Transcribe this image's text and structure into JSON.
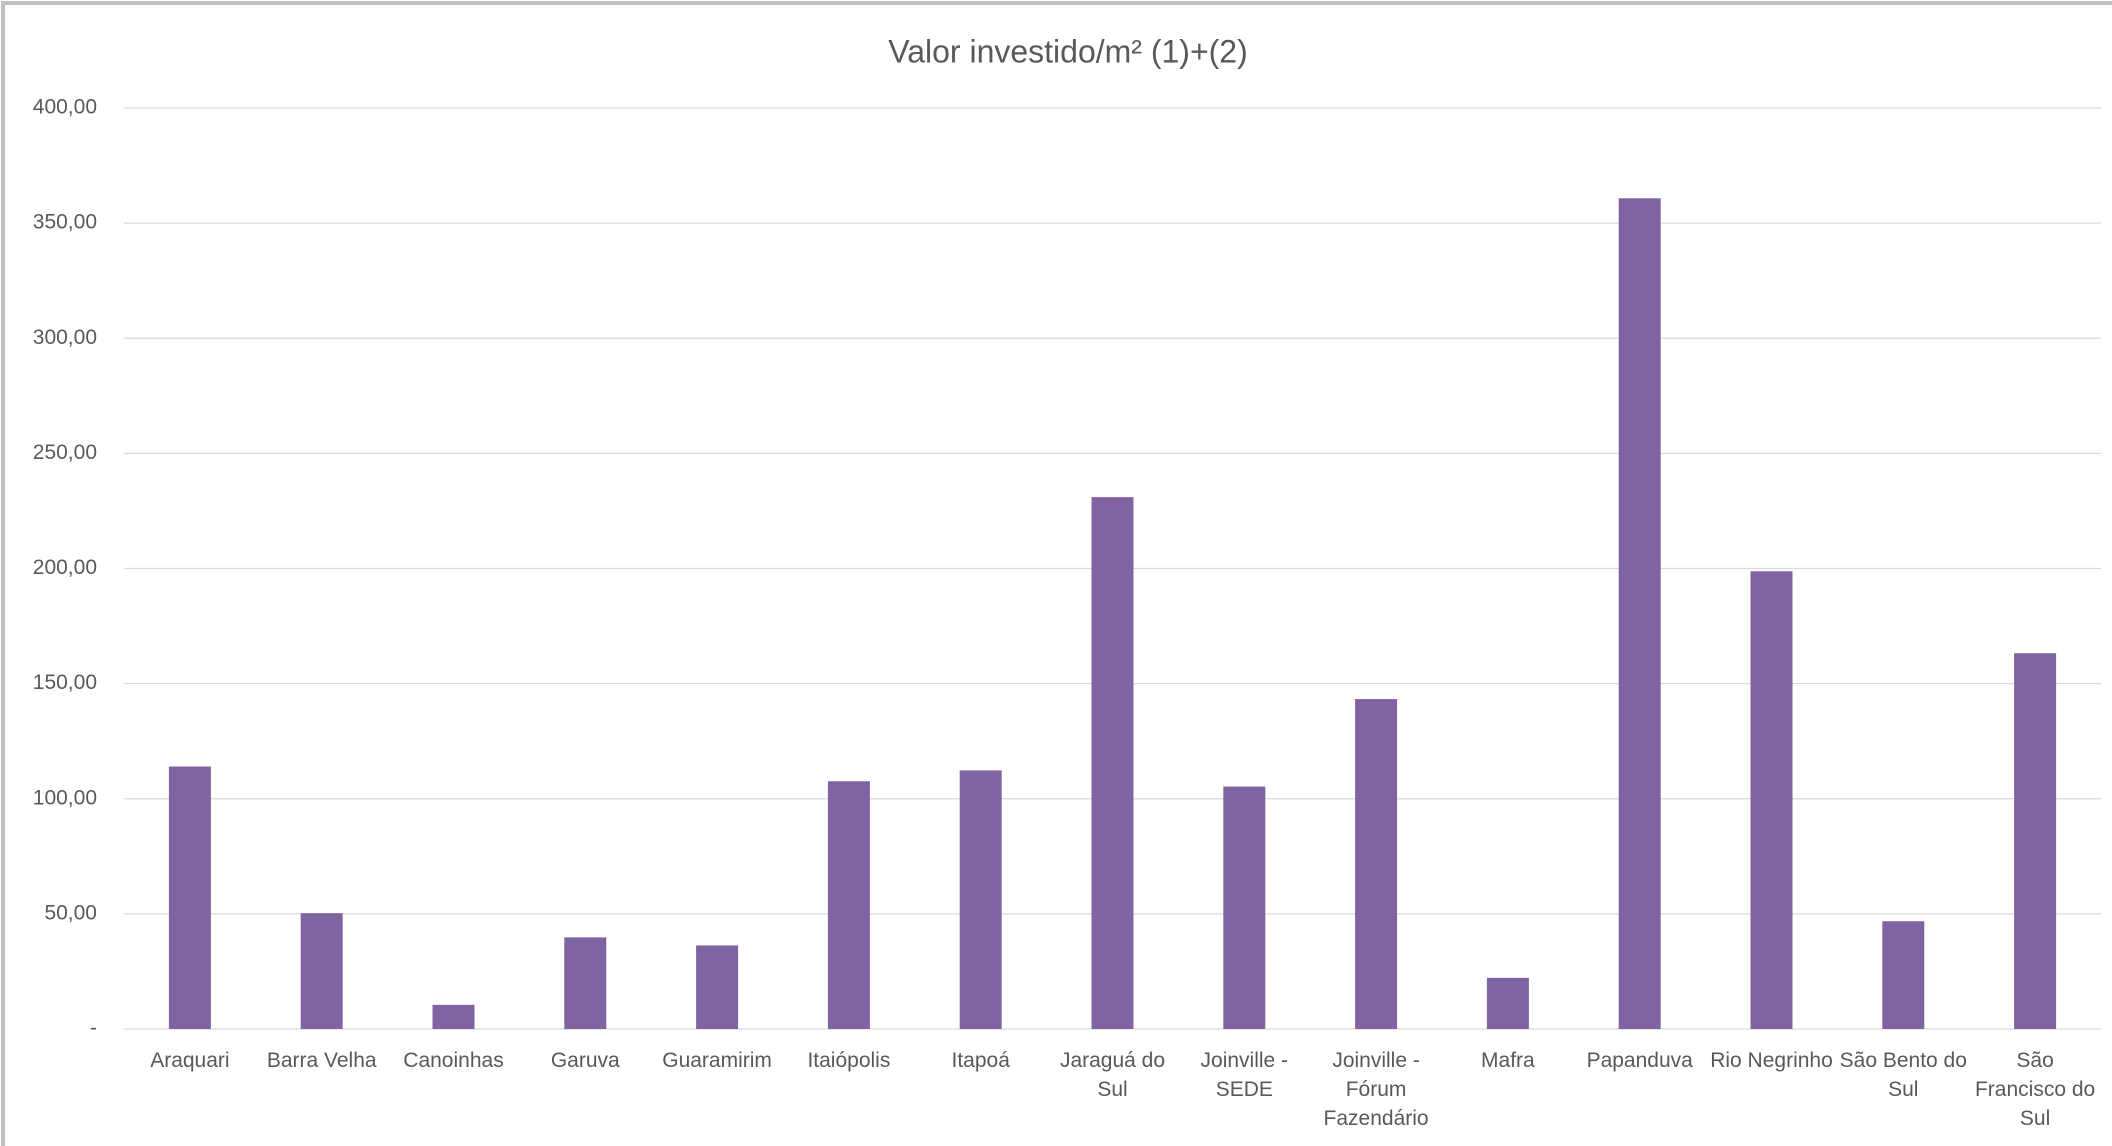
{
  "chart_data": {
    "type": "bar",
    "title": "Valor investido/m² (1)+(2)",
    "categories": [
      "Araquari",
      "Barra Velha",
      "Canoinhas",
      "Garuva",
      "Guaramirim",
      "Itaiópolis",
      "Itapoá",
      "Jaraguá do Sul",
      "Joinville - SEDE",
      "Joinville - Fórum Fazendário",
      "Mafra",
      "Papanduva",
      "Rio Negrinho",
      "São Bento do Sul",
      "São Francisco do Sul"
    ],
    "values": [
      114,
      50.3,
      10.5,
      39.8,
      36.3,
      107.6,
      112.3,
      231,
      105.3,
      143.3,
      22.2,
      360.8,
      198.8,
      46.8,
      163.2
    ],
    "color": "#8064a2",
    "ylim": [
      0,
      400
    ],
    "yticks": [
      {
        "value": 0,
        "label": "-"
      },
      {
        "value": 50,
        "label": "50,00"
      },
      {
        "value": 100,
        "label": "100,00"
      },
      {
        "value": 150,
        "label": "150,00"
      },
      {
        "value": 200,
        "label": "200,00"
      },
      {
        "value": 250,
        "label": "250,00"
      },
      {
        "value": 300,
        "label": "300,00"
      },
      {
        "value": 350,
        "label": "350,00"
      },
      {
        "value": 400,
        "label": "400,00"
      }
    ],
    "grid": true
  }
}
